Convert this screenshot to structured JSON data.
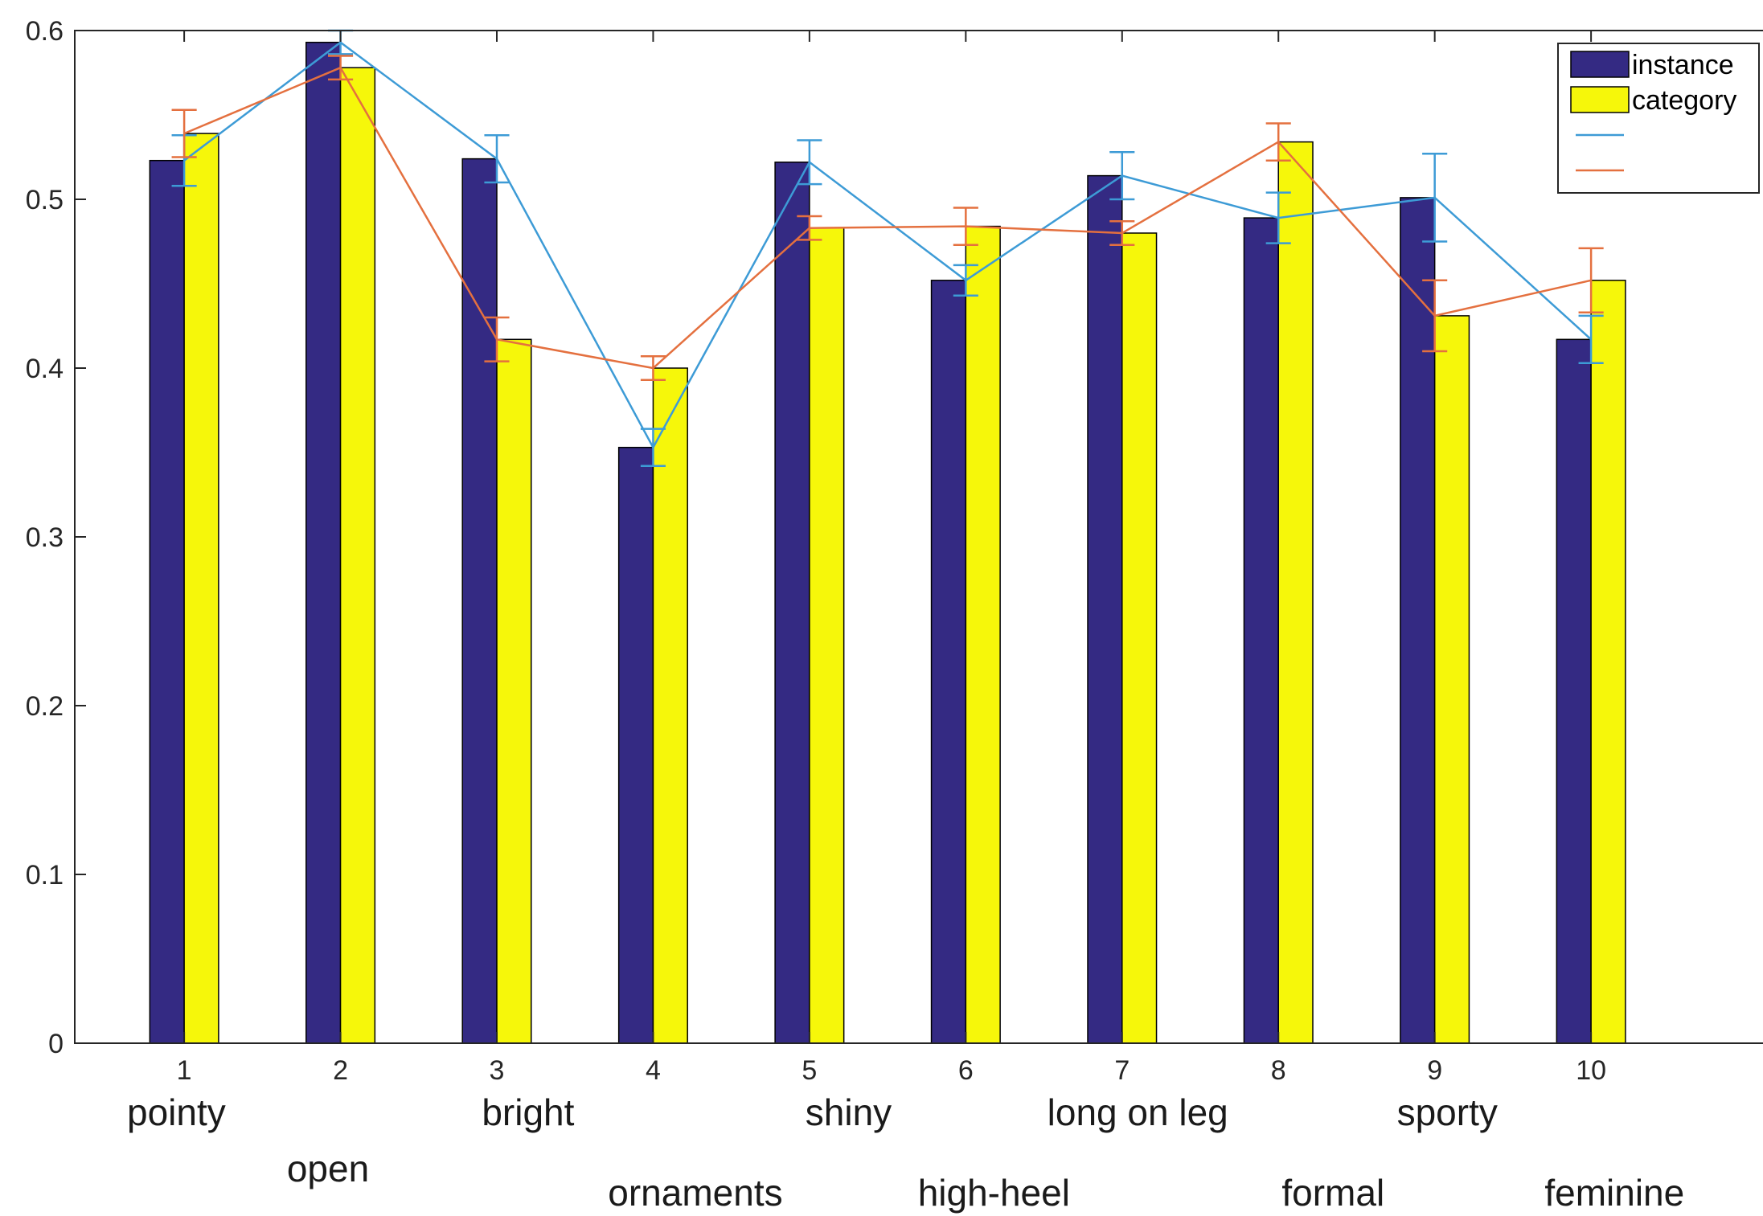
{
  "chart_data": {
    "type": "bar",
    "categories": [
      "1",
      "2",
      "3",
      "4",
      "5",
      "6",
      "7",
      "8",
      "9",
      "10"
    ],
    "attribute_labels": [
      "pointy",
      "open",
      "bright",
      "ornaments",
      "shiny",
      "high-heel",
      "long on leg",
      "formal",
      "sporty",
      "feminine"
    ],
    "series": [
      {
        "name": "instance",
        "values": [
          0.523,
          0.593,
          0.524,
          0.353,
          0.522,
          0.452,
          0.514,
          0.489,
          0.501,
          0.417
        ]
      },
      {
        "name": "category",
        "values": [
          0.539,
          0.578,
          0.417,
          0.4,
          0.483,
          0.484,
          0.48,
          0.534,
          0.431,
          0.452
        ]
      }
    ],
    "lines": [
      {
        "name": "",
        "values": [
          0.523,
          0.593,
          0.524,
          0.353,
          0.522,
          0.452,
          0.514,
          0.489,
          0.501,
          0.417
        ],
        "err": [
          0.015,
          0.007,
          0.014,
          0.011,
          0.013,
          0.009,
          0.014,
          0.015,
          0.026,
          0.014
        ]
      },
      {
        "name": "",
        "values": [
          0.539,
          0.578,
          0.417,
          0.4,
          0.483,
          0.484,
          0.48,
          0.534,
          0.431,
          0.452
        ],
        "err": [
          0.014,
          0.007,
          0.013,
          0.007,
          0.007,
          0.011,
          0.007,
          0.011,
          0.021,
          0.019
        ]
      }
    ],
    "yticks": [
      "0",
      "0.1",
      "0.2",
      "0.3",
      "0.4",
      "0.5",
      "0.6"
    ],
    "ylim": [
      0,
      0.6
    ],
    "xlim": [
      0.3,
      11.1
    ],
    "title": "",
    "xlabel": "",
    "ylabel": "",
    "legend_position": "top-right",
    "grid": false,
    "colors": {
      "instance": "#342a83",
      "category": "#f6f70a",
      "line1": "#3d9bd6",
      "line2": "#e4703f",
      "axis": "#262626"
    }
  }
}
